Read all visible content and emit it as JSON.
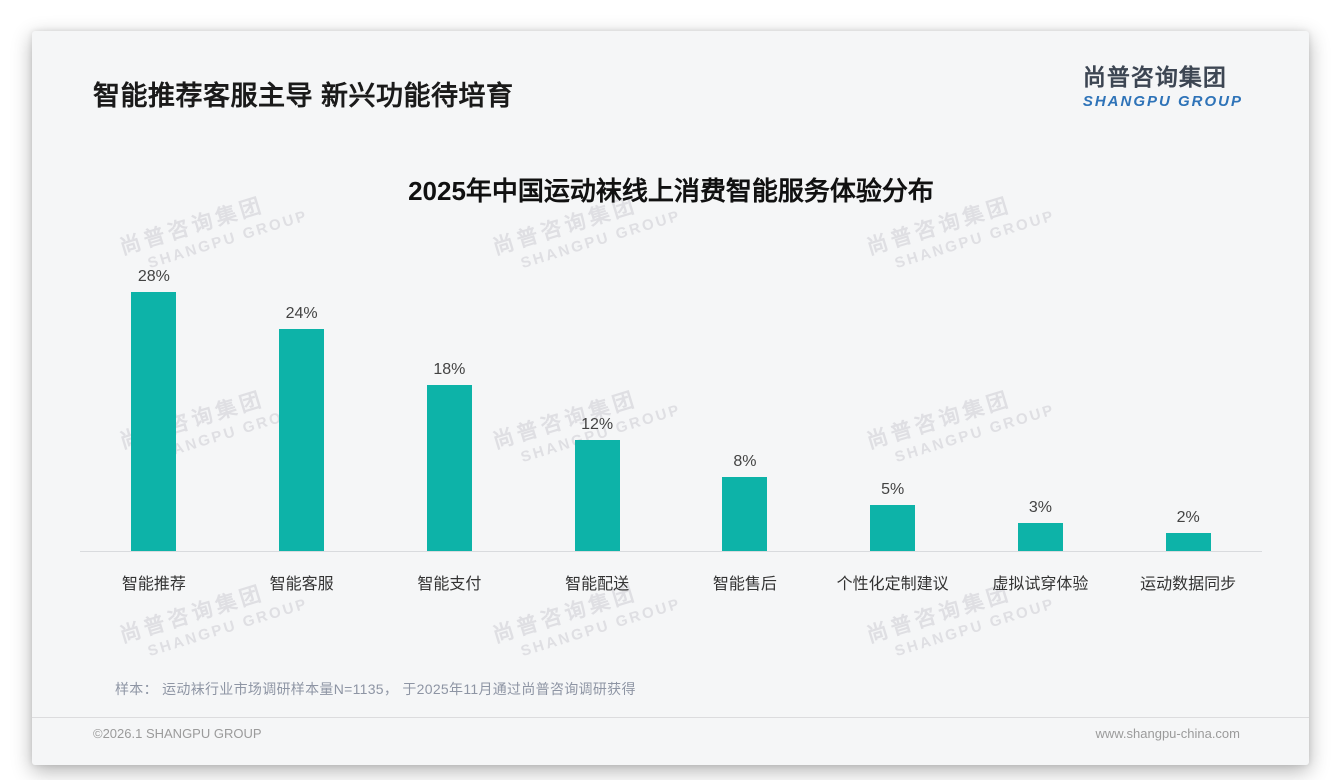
{
  "page": {
    "title": "智能推荐客服主导 新兴功能待培育",
    "logo": {
      "cn": "尚普咨询集团",
      "en": "SHANGPU GROUP"
    },
    "watermark": {
      "cn": "尚普咨询集团",
      "en": "SHANGPU GROUP"
    },
    "sample_note": "样本： 运动袜行业市场调研样本量N=1135， 于2025年11月通过尚普咨询调研获得",
    "footer": {
      "left": "©2026.1 SHANGPU GROUP",
      "right": "www.shangpu-china.com"
    }
  },
  "chart_data": {
    "type": "bar",
    "title": "2025年中国运动袜线上消费智能服务体验分布",
    "categories": [
      "智能推荐",
      "智能客服",
      "智能支付",
      "智能配送",
      "智能售后",
      "个性化定制建议",
      "虚拟试穿体验",
      "运动数据同步"
    ],
    "values": [
      28,
      24,
      18,
      12,
      8,
      5,
      3,
      2
    ],
    "value_labels": [
      "28%",
      "24%",
      "18%",
      "12%",
      "8%",
      "5%",
      "3%",
      "2%"
    ],
    "unit": "%",
    "bar_color": "#0db3a8",
    "xlabel": "",
    "ylabel": "",
    "ylim": [
      0,
      30
    ],
    "grid": false,
    "legend": null,
    "value_labels_position": "above-bars"
  }
}
